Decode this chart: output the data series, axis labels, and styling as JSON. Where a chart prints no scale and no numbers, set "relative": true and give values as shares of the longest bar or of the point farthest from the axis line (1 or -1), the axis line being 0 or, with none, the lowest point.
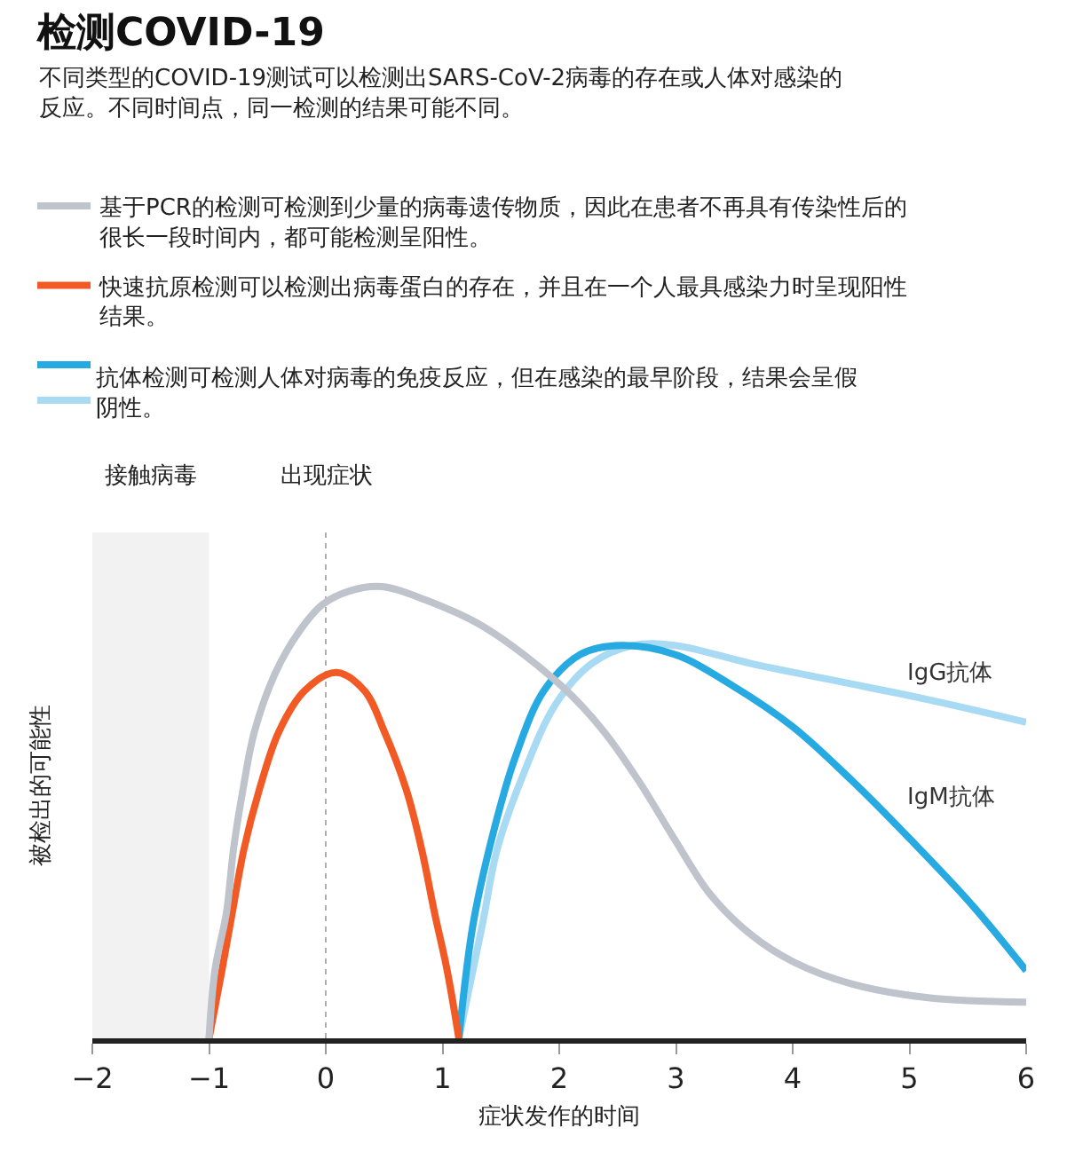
{
  "chart_data": {
    "type": "line",
    "title": "检测COVID-19",
    "subtitle": "不同类型的COVID-19测试可以检测出SARS-CoV-2病毒的存在或人体对感染的反应。不同时间点，同一检测的结果可能不同。",
    "xlabel": "症状发作的时间",
    "ylabel": "被检出的可能性",
    "relative": true,
    "xlim": [
      -2,
      6
    ],
    "xticks": [
      -2,
      -1,
      0,
      1,
      2,
      3,
      4,
      5,
      6
    ],
    "legend": "top left",
    "bands": [
      {
        "axis": "x",
        "from": -2,
        "to": -1,
        "label": "接触病毒",
        "color": "#f2f2f2"
      }
    ],
    "ref_lines": [
      {
        "axis": "x",
        "value": 0,
        "label": "出现症状",
        "color": "#b0b0b0",
        "line_style": "dashed"
      }
    ],
    "annotations": [
      "抗体检测可检测人体对病毒的免疫反应，但在感染的最早阶段，结果会呈假阴性。"
    ],
    "series": [
      {
        "name": "基于PCR的检测可检测到少量的病毒遗传物质，因此在患者不再具有传染性后的很长一段时间内，都可能检测呈阳性。",
        "color": "#bec3cc",
        "x": [
          -1,
          -0.95,
          -0.85,
          -0.79,
          -0.71,
          -0.61,
          -0.43,
          -0.23,
          -0.03,
          0.2,
          0.48,
          0.86,
          1.36,
          2.02,
          2.38,
          2.68,
          2.99,
          3.29,
          3.64,
          4.0,
          4.51,
          5.16,
          6
        ],
        "values": [
          0,
          0.15,
          0.28,
          0.42,
          0.55,
          0.68,
          0.81,
          0.9,
          0.96,
          0.99,
          1,
          0.97,
          0.91,
          0.78,
          0.68,
          0.57,
          0.44,
          0.32,
          0.23,
          0.17,
          0.12,
          0.09,
          0.08
        ]
      },
      {
        "name": "快速抗原检测可以检测出病毒蛋白的存在，并且在一个人最具感染力时呈现阳性结果。",
        "color": "#f15a24",
        "x": [
          -1,
          -0.89,
          -0.8,
          -0.7,
          -0.57,
          -0.4,
          -0.18,
          0.09,
          0.33,
          0.5,
          0.69,
          0.82,
          0.93,
          1.04,
          1.14
        ],
        "values": [
          0,
          0.15,
          0.28,
          0.42,
          0.55,
          0.68,
          0.77,
          0.81,
          0.77,
          0.68,
          0.55,
          0.42,
          0.28,
          0.15,
          0
        ]
      },
      {
        "name": "IgM抗体",
        "color": "#27a9e1",
        "x": [
          1.14,
          1.26,
          1.42,
          1.62,
          1.87,
          2.18,
          2.53,
          2.99,
          3.49,
          4.0,
          4.51,
          5.01,
          5.52,
          6
        ],
        "values": [
          0,
          0.25,
          0.44,
          0.62,
          0.77,
          0.85,
          0.87,
          0.85,
          0.78,
          0.69,
          0.57,
          0.44,
          0.3,
          0.15
        ]
      },
      {
        "name": "IgG抗体",
        "color": "#a9daf3",
        "x": [
          1.14,
          1.34,
          1.47,
          1.67,
          1.97,
          2.28,
          2.63,
          2.99,
          3.64,
          4.4,
          5.16,
          6
        ],
        "values": [
          0,
          0.25,
          0.42,
          0.57,
          0.74,
          0.83,
          0.87,
          0.87,
          0.83,
          0.79,
          0.75,
          0.7
        ]
      }
    ]
  }
}
